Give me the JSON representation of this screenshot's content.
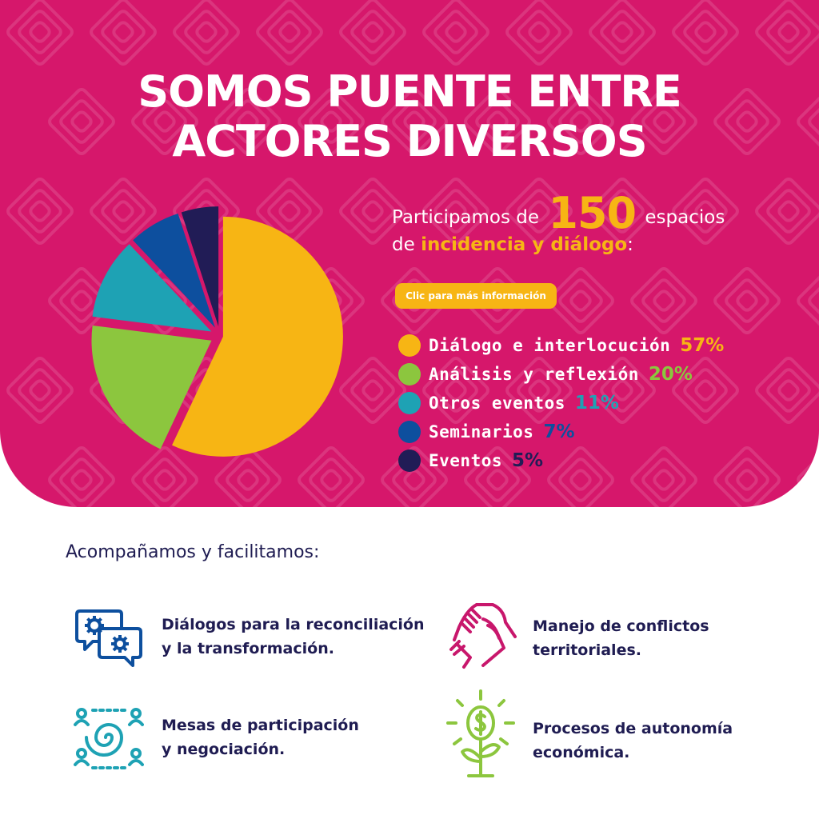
{
  "hero": {
    "title_line1": "SOMOS PUENTE ENTRE",
    "title_line2": "ACTORES DIVERSOS",
    "intro_prefix": "Participamos de",
    "intro_number": "150",
    "intro_suffix": "espacios",
    "intro_line2_prefix": "de",
    "intro_highlight": "incidencia y diálogo",
    "intro_line2_suffix": ":",
    "cta_label": "Clic para más información",
    "background_color": "#d6176b",
    "accent_color": "#f7b514"
  },
  "chart_data": {
    "type": "pie",
    "slices": [
      {
        "label": "Diálogo e interlocución",
        "value": 57,
        "value_label": "57%",
        "color": "#f7b514"
      },
      {
        "label": "Análisis y reflexión",
        "value": 20,
        "value_label": "20%",
        "color": "#8cc63e"
      },
      {
        "label": "Otros eventos",
        "value": 11,
        "value_label": "11%",
        "color": "#1ea2b4"
      },
      {
        "label": "Seminarios",
        "value": 7,
        "value_label": "7%",
        "color": "#0d4f9e"
      },
      {
        "label": "Eventos",
        "value": 5,
        "value_label": "5%",
        "color": "#211c56"
      }
    ],
    "legend_position": "right",
    "exploded": true
  },
  "services": {
    "heading": "Acompañamos y facilitamos:",
    "items": [
      {
        "line1": "Diálogos para la reconciliación",
        "line2": "y la transformación.",
        "icon": "chat-gears-icon",
        "icon_color": "#0d4f9e"
      },
      {
        "line1": "Manejo de conflictos",
        "line2": "territoriales.",
        "icon": "handshake-icon",
        "icon_color": "#c8176c"
      },
      {
        "line1": "Mesas de participación",
        "line2": "y negociación.",
        "icon": "people-circle-icon",
        "icon_color": "#1ea2b4"
      },
      {
        "line1": "Procesos de autonomía",
        "line2": "económica.",
        "icon": "money-plant-icon",
        "icon_color": "#8cc63e"
      }
    ]
  }
}
